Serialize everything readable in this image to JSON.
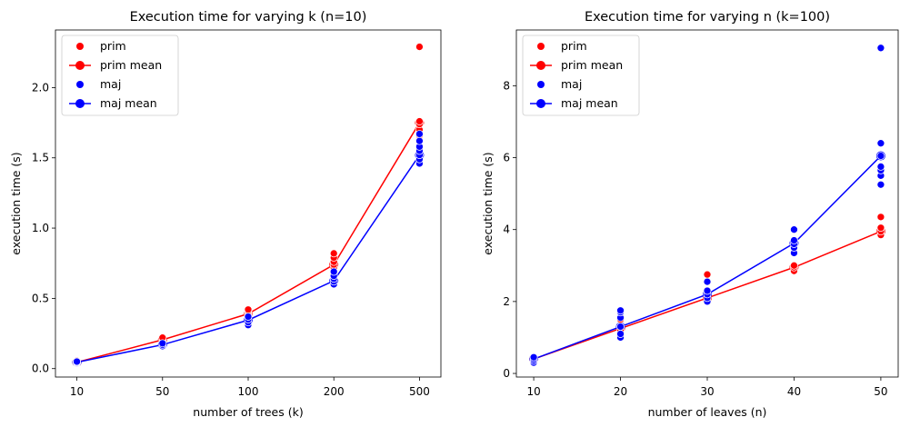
{
  "chart_data": [
    {
      "type": "scatter",
      "title": "Execution time for varying k (n=10)",
      "xlabel": "number of trees (k)",
      "ylabel": "execution time (s)",
      "categories": [
        "10",
        "50",
        "100",
        "200",
        "500"
      ],
      "ylim": [
        -0.06,
        2.41
      ],
      "yticks": [
        0.0,
        0.5,
        1.0,
        1.5,
        2.0
      ],
      "ytick_labels": [
        "0.0",
        "0.5",
        "1.0",
        "1.5",
        "2.0"
      ],
      "grid": false,
      "legend_position": "top-left",
      "series": [
        {
          "name": "prim",
          "kind": "points",
          "color": "#ff0000",
          "points": [
            [
              0,
              [
                0.04,
                0.045,
                0.05,
                0.055
              ]
            ],
            [
              1,
              [
                0.19,
                0.2,
                0.21,
                0.22
              ]
            ],
            [
              2,
              [
                0.37,
                0.38,
                0.39,
                0.4,
                0.41,
                0.42
              ]
            ],
            [
              3,
              [
                0.7,
                0.72,
                0.74,
                0.76,
                0.79,
                0.82
              ]
            ],
            [
              4,
              [
                1.63,
                1.66,
                1.7,
                1.74,
                1.76,
                2.29
              ]
            ]
          ]
        },
        {
          "name": "prim mean",
          "kind": "line",
          "color": "#ff0000",
          "values": [
            0.045,
            0.205,
            0.39,
            0.74,
            1.75
          ]
        },
        {
          "name": "maj",
          "kind": "points",
          "color": "#0000ff",
          "points": [
            [
              0,
              [
                0.04,
                0.045,
                0.05
              ]
            ],
            [
              1,
              [
                0.16,
                0.17,
                0.18
              ]
            ],
            [
              2,
              [
                0.31,
                0.33,
                0.35,
                0.37
              ]
            ],
            [
              3,
              [
                0.6,
                0.62,
                0.64,
                0.66,
                0.69
              ]
            ],
            [
              4,
              [
                1.46,
                1.49,
                1.52,
                1.55,
                1.58,
                1.62,
                1.67
              ]
            ]
          ]
        },
        {
          "name": "maj mean",
          "kind": "line",
          "color": "#0000ff",
          "values": [
            0.045,
            0.17,
            0.345,
            0.625,
            1.52
          ]
        }
      ]
    },
    {
      "type": "scatter",
      "title": "Execution time for varying n (k=100)",
      "xlabel": "number of leaves (n)",
      "ylabel": "execution time (s)",
      "categories": [
        "10",
        "20",
        "30",
        "40",
        "50"
      ],
      "ylim": [
        -0.1,
        9.55
      ],
      "yticks": [
        0,
        2,
        4,
        6,
        8
      ],
      "ytick_labels": [
        "0",
        "2",
        "4",
        "6",
        "8"
      ],
      "grid": false,
      "legend_position": "top-left",
      "series": [
        {
          "name": "prim",
          "kind": "points",
          "color": "#ff0000",
          "points": [
            [
              0,
              [
                0.35,
                0.4,
                0.45
              ]
            ],
            [
              1,
              [
                1.2,
                1.3,
                1.5
              ]
            ],
            [
              2,
              [
                2.0,
                2.1,
                2.3,
                2.75
              ]
            ],
            [
              3,
              [
                2.85,
                2.95,
                3.0
              ]
            ],
            [
              4,
              [
                3.85,
                3.95,
                4.05,
                4.35
              ]
            ]
          ]
        },
        {
          "name": "prim mean",
          "kind": "line",
          "color": "#ff0000",
          "values": [
            0.4,
            1.25,
            2.1,
            2.95,
            3.95
          ]
        },
        {
          "name": "maj",
          "kind": "points",
          "color": "#0000ff",
          "points": [
            [
              0,
              [
                0.3,
                0.35,
                0.4,
                0.45
              ]
            ],
            [
              1,
              [
                1.0,
                1.1,
                1.3,
                1.55,
                1.7,
                1.75
              ]
            ],
            [
              2,
              [
                2.0,
                2.1,
                2.2,
                2.3,
                2.55
              ]
            ],
            [
              3,
              [
                3.35,
                3.5,
                3.6,
                3.7,
                4.0
              ]
            ],
            [
              4,
              [
                5.25,
                5.5,
                5.65,
                5.75,
                6.05,
                6.4,
                9.05
              ]
            ]
          ]
        },
        {
          "name": "maj mean",
          "kind": "line",
          "color": "#0000ff",
          "values": [
            0.4,
            1.3,
            2.2,
            3.62,
            6.05
          ]
        }
      ]
    }
  ]
}
